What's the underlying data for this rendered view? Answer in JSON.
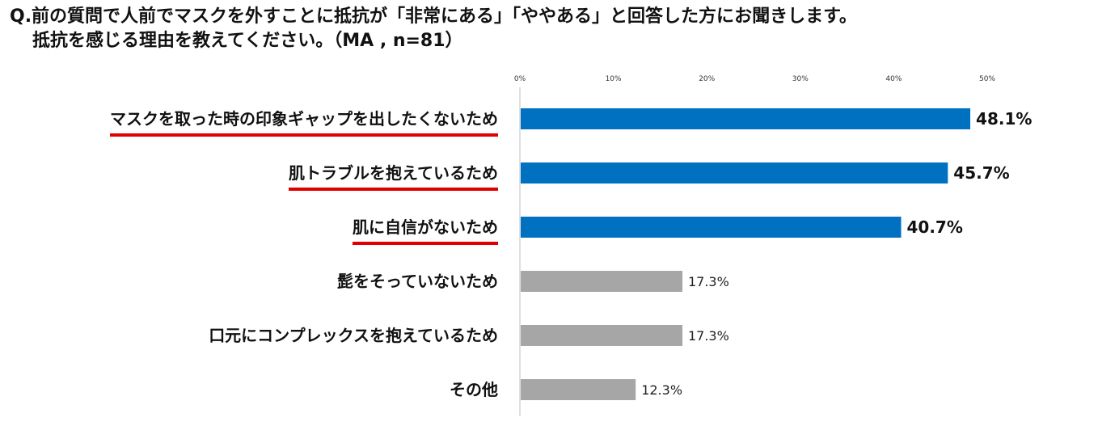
{
  "question": {
    "line1": "Q.前の質問で人前でマスクを外すことに抵抗が「非常にある」「ややある」と回答した方にお聞きします。",
    "line2": "抵抗を感じる理由を教えてください。（MA , n=81）"
  },
  "chart_data": {
    "type": "bar",
    "orientation": "horizontal",
    "title": "",
    "xlabel": "",
    "ylabel": "",
    "xlim": [
      0,
      50
    ],
    "ticks": [
      "0%",
      "10%",
      "20%",
      "30%",
      "40%",
      "50%"
    ],
    "tick_values": [
      0,
      10,
      20,
      30,
      40,
      50
    ],
    "categories": [
      "マスクを取った時の印象ギャップを出したくないため",
      "肌トラブルを抱えているため",
      "肌に自信がないため",
      "髭をそっていないため",
      "口元にコンプレックスを抱えているため",
      "その他"
    ],
    "values": [
      48.1,
      45.7,
      40.7,
      17.3,
      17.3,
      12.3
    ],
    "value_labels": [
      "48.1%",
      "45.7%",
      "40.7%",
      "17.3%",
      "17.3%",
      "12.3%"
    ],
    "highlighted": [
      true,
      true,
      true,
      false,
      false,
      false
    ],
    "colors": {
      "highlight_bar": "#0070c0",
      "normal_bar": "#a6a6a6",
      "underline": "#e00000",
      "axis": "#bfbfbf"
    },
    "grid": false,
    "legend": "none"
  }
}
